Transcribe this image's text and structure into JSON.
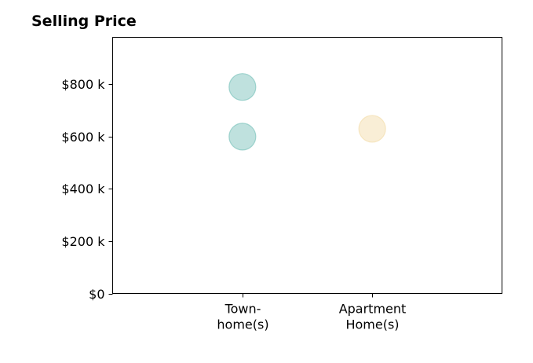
{
  "chart_data": {
    "type": "scatter",
    "title": "Selling Price",
    "xlabel": "",
    "ylabel": "",
    "categories": [
      [
        "Town-",
        "home(s)"
      ],
      [
        "Apartment",
        "Home(s)"
      ]
    ],
    "y_ticks": [
      0,
      200,
      400,
      600,
      800
    ],
    "y_tick_labels": [
      "$0",
      "$200 k",
      "$400 k",
      "$600 k",
      "$800 k"
    ],
    "ylim": [
      0,
      980
    ],
    "xlim": [
      -1,
      2
    ],
    "grid": false,
    "legend": "none",
    "series": [
      {
        "category": "Town-home(s)",
        "color": "#7fc4bd",
        "points": [
          {
            "x": 0,
            "y": 790
          },
          {
            "x": 0,
            "y": 600
          }
        ]
      },
      {
        "category": "Apartment Home(s)",
        "color": "#f3deae",
        "points": [
          {
            "x": 1,
            "y": 630
          }
        ]
      }
    ]
  }
}
